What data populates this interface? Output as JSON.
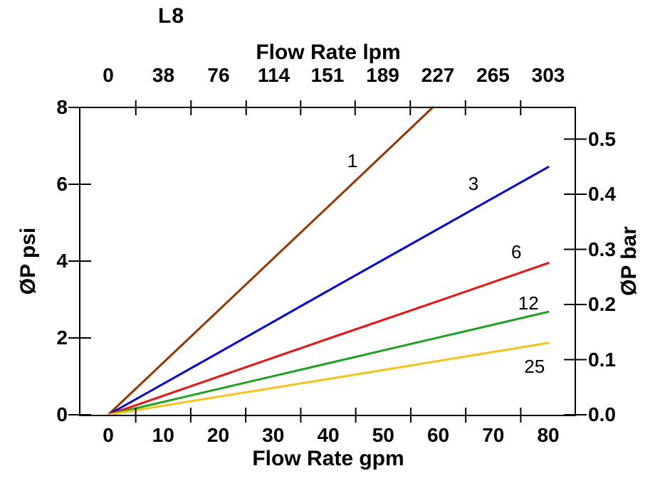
{
  "chart_data": {
    "type": "line",
    "title": "L8",
    "axes": {
      "top": {
        "label": "Flow Rate lpm",
        "ticks": [
          0,
          38,
          76,
          114,
          151,
          189,
          227,
          265,
          303
        ],
        "tick_style": "marks-at-midpoints"
      },
      "bottom": {
        "label": "Flow Rate gpm",
        "ticks": [
          0,
          10,
          20,
          30,
          40,
          50,
          60,
          70,
          80
        ],
        "tick_style": "marks-at-midpoints"
      },
      "left": {
        "label": "ØP psi",
        "ticks": [
          0,
          2,
          4,
          6,
          8
        ],
        "range": [
          0,
          8
        ]
      },
      "right": {
        "label": "ØP bar",
        "ticks": [
          "0.0",
          "0.1",
          "0.2",
          "0.3",
          "0.4",
          "0.5"
        ],
        "range": [
          0,
          0.558
        ]
      }
    },
    "grid": false,
    "legend": "inline-curve-labels",
    "series": [
      {
        "name": "1",
        "color": "#993300",
        "points_gpm_psi": [
          [
            0,
            0
          ],
          [
            20,
            2.71
          ],
          [
            40,
            5.42
          ],
          [
            59,
            8.0
          ]
        ],
        "label_at": {
          "gpm": 44.4,
          "psi": 6.61
        }
      },
      {
        "name": "3",
        "color": "#0000DD",
        "points_gpm_psi": [
          [
            0,
            0
          ],
          [
            20,
            1.61
          ],
          [
            40,
            3.23
          ],
          [
            60,
            4.84
          ],
          [
            80,
            6.45
          ]
        ],
        "label_at": {
          "gpm": 66.4,
          "psi": 6.02
        }
      },
      {
        "name": "6",
        "color": "#EE1111",
        "points_gpm_psi": [
          [
            0,
            0
          ],
          [
            20,
            0.99
          ],
          [
            40,
            1.98
          ],
          [
            60,
            2.96
          ],
          [
            80,
            3.95
          ]
        ],
        "label_at": {
          "gpm": 74.2,
          "psi": 4.24
        }
      },
      {
        "name": "12",
        "color": "#1FA01F",
        "points_gpm_psi": [
          [
            0,
            0
          ],
          [
            20,
            0.67
          ],
          [
            40,
            1.34
          ],
          [
            60,
            2.01
          ],
          [
            80,
            2.68
          ]
        ],
        "label_at": {
          "gpm": 76.4,
          "psi": 2.91
        }
      },
      {
        "name": "25",
        "color": "#F4C31C",
        "points_gpm_psi": [
          [
            0,
            0
          ],
          [
            20,
            0.47
          ],
          [
            40,
            0.93
          ],
          [
            60,
            1.4
          ],
          [
            80,
            1.87
          ]
        ],
        "label_at": {
          "gpm": 77.5,
          "psi": 1.26
        }
      }
    ],
    "axis_color": "#000000"
  }
}
